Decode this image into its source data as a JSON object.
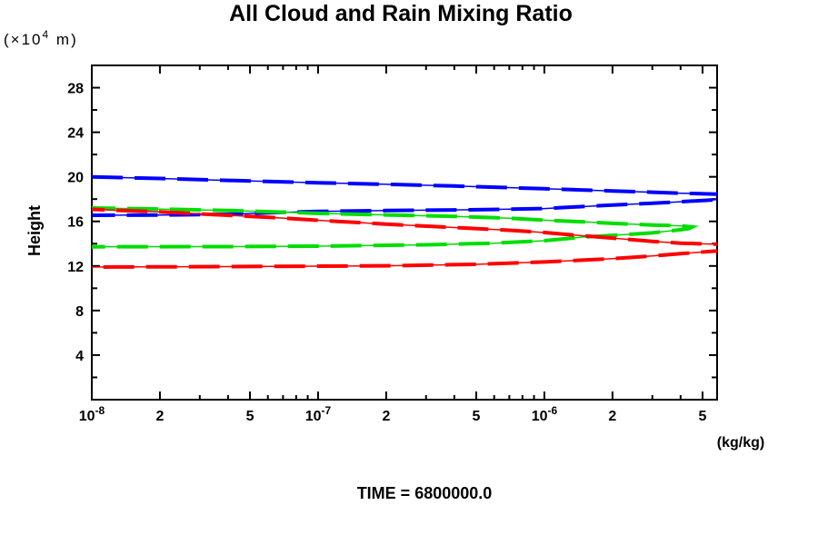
{
  "header": {
    "title": "All Cloud and Rain Mixing Ratio"
  },
  "y_axis": {
    "unit_prefix": "(×10",
    "unit_sup": "4",
    "unit_suffix": " m)"
  },
  "footer": {
    "time_label": "TIME = 6800000.0"
  },
  "chart_data": {
    "type": "line",
    "title": "All Cloud and Rain Mixing Ratio",
    "xlabel": "(kg/kg)",
    "ylabel": "Height",
    "y_unit": "(×10^4 m)",
    "x_scale": "log",
    "xlim": [
      1e-08,
      5.8e-06
    ],
    "ylim": [
      0,
      30
    ],
    "grid": false,
    "legend": "none",
    "annotation": "TIME = 6800000.0",
    "y_ticks_major": [
      4,
      8,
      12,
      16,
      20,
      24,
      28
    ],
    "y_ticks_minor": [
      2,
      6,
      10,
      14,
      18,
      22,
      26
    ],
    "x_ticks": [
      {
        "v": 1e-08,
        "base": "10",
        "exp": "-8"
      },
      {
        "v": 2e-08,
        "label": "2"
      },
      {
        "v": 3e-08
      },
      {
        "v": 4e-08
      },
      {
        "v": 5e-08,
        "label": "5"
      },
      {
        "v": 6e-08
      },
      {
        "v": 7e-08
      },
      {
        "v": 8e-08
      },
      {
        "v": 9e-08
      },
      {
        "v": 1e-07,
        "base": "10",
        "exp": "-7"
      },
      {
        "v": 2e-07,
        "label": "2"
      },
      {
        "v": 3e-07
      },
      {
        "v": 4e-07
      },
      {
        "v": 5e-07,
        "label": "5"
      },
      {
        "v": 6e-07
      },
      {
        "v": 7e-07
      },
      {
        "v": 8e-07
      },
      {
        "v": 9e-07
      },
      {
        "v": 1e-06,
        "base": "10",
        "exp": "-6"
      },
      {
        "v": 2e-06,
        "label": "2"
      },
      {
        "v": 3e-06
      },
      {
        "v": 4e-06
      },
      {
        "v": 5e-06,
        "label": "5"
      }
    ],
    "series": [
      {
        "name": "blue-curve",
        "color": "#0000ff",
        "points": [
          [
            1e-08,
            20.0
          ],
          [
            2e-08,
            19.85
          ],
          [
            4e-08,
            19.68
          ],
          [
            1e-07,
            19.47
          ],
          [
            2e-07,
            19.33
          ],
          [
            4e-07,
            19.17
          ],
          [
            1e-06,
            18.93
          ],
          [
            2e-06,
            18.73
          ],
          [
            3e-06,
            18.62
          ],
          [
            4e-06,
            18.53
          ],
          [
            5.8e-06,
            18.45
          ],
          [
            7e-06,
            18.35
          ],
          [
            7.6e-06,
            18.18
          ],
          [
            7e-06,
            18.05
          ],
          [
            5.8e-06,
            17.95
          ],
          [
            4e-06,
            17.76
          ],
          [
            3e-06,
            17.63
          ],
          [
            2e-06,
            17.47
          ],
          [
            1e-06,
            17.15
          ],
          [
            5e-07,
            17.05
          ],
          [
            2e-07,
            16.97
          ],
          [
            1e-07,
            16.9
          ],
          [
            6e-08,
            16.78
          ],
          [
            4e-08,
            16.64
          ],
          [
            2e-08,
            16.57
          ],
          [
            1e-08,
            16.55
          ]
        ]
      },
      {
        "name": "green-curve",
        "color": "#00dd00",
        "points": [
          [
            1e-08,
            17.2
          ],
          [
            2e-08,
            17.1
          ],
          [
            4e-08,
            16.98
          ],
          [
            1e-07,
            16.72
          ],
          [
            2e-07,
            16.58
          ],
          [
            4e-07,
            16.45
          ],
          [
            7e-07,
            16.28
          ],
          [
            1e-06,
            16.11
          ],
          [
            1.5e-06,
            15.95
          ],
          [
            2e-06,
            15.82
          ],
          [
            3e-06,
            15.68
          ],
          [
            4e-06,
            15.6
          ],
          [
            4.5e-06,
            15.5
          ],
          [
            4.35e-06,
            15.35
          ],
          [
            4e-06,
            15.25
          ],
          [
            3e-06,
            14.97
          ],
          [
            2e-06,
            14.75
          ],
          [
            1.5e-06,
            14.6
          ],
          [
            1e-06,
            14.27
          ],
          [
            6e-07,
            14.05
          ],
          [
            3e-07,
            13.9
          ],
          [
            1e-07,
            13.78
          ],
          [
            4e-08,
            13.74
          ],
          [
            1e-08,
            13.72
          ]
        ]
      },
      {
        "name": "red-curve",
        "color": "#ff0000",
        "points": [
          [
            1e-08,
            17.08
          ],
          [
            2e-08,
            16.85
          ],
          [
            4e-08,
            16.55
          ],
          [
            7e-08,
            16.3
          ],
          [
            1e-07,
            16.1
          ],
          [
            2e-07,
            15.75
          ],
          [
            4e-07,
            15.45
          ],
          [
            7e-07,
            15.2
          ],
          [
            1e-06,
            15.0
          ],
          [
            1.5e-06,
            14.7
          ],
          [
            2e-06,
            14.5
          ],
          [
            3e-06,
            14.2
          ],
          [
            4e-06,
            14.05
          ],
          [
            5.8e-06,
            13.95
          ],
          [
            7e-06,
            13.85
          ],
          [
            7.6e-06,
            13.65
          ],
          [
            7e-06,
            13.48
          ],
          [
            5.8e-06,
            13.35
          ],
          [
            4e-06,
            13.1
          ],
          [
            3e-06,
            12.9
          ],
          [
            2e-06,
            12.65
          ],
          [
            1e-06,
            12.36
          ],
          [
            5e-07,
            12.15
          ],
          [
            2e-07,
            12.02
          ],
          [
            1e-07,
            11.98
          ],
          [
            4e-08,
            11.94
          ],
          [
            1e-08,
            11.9
          ]
        ]
      }
    ]
  }
}
